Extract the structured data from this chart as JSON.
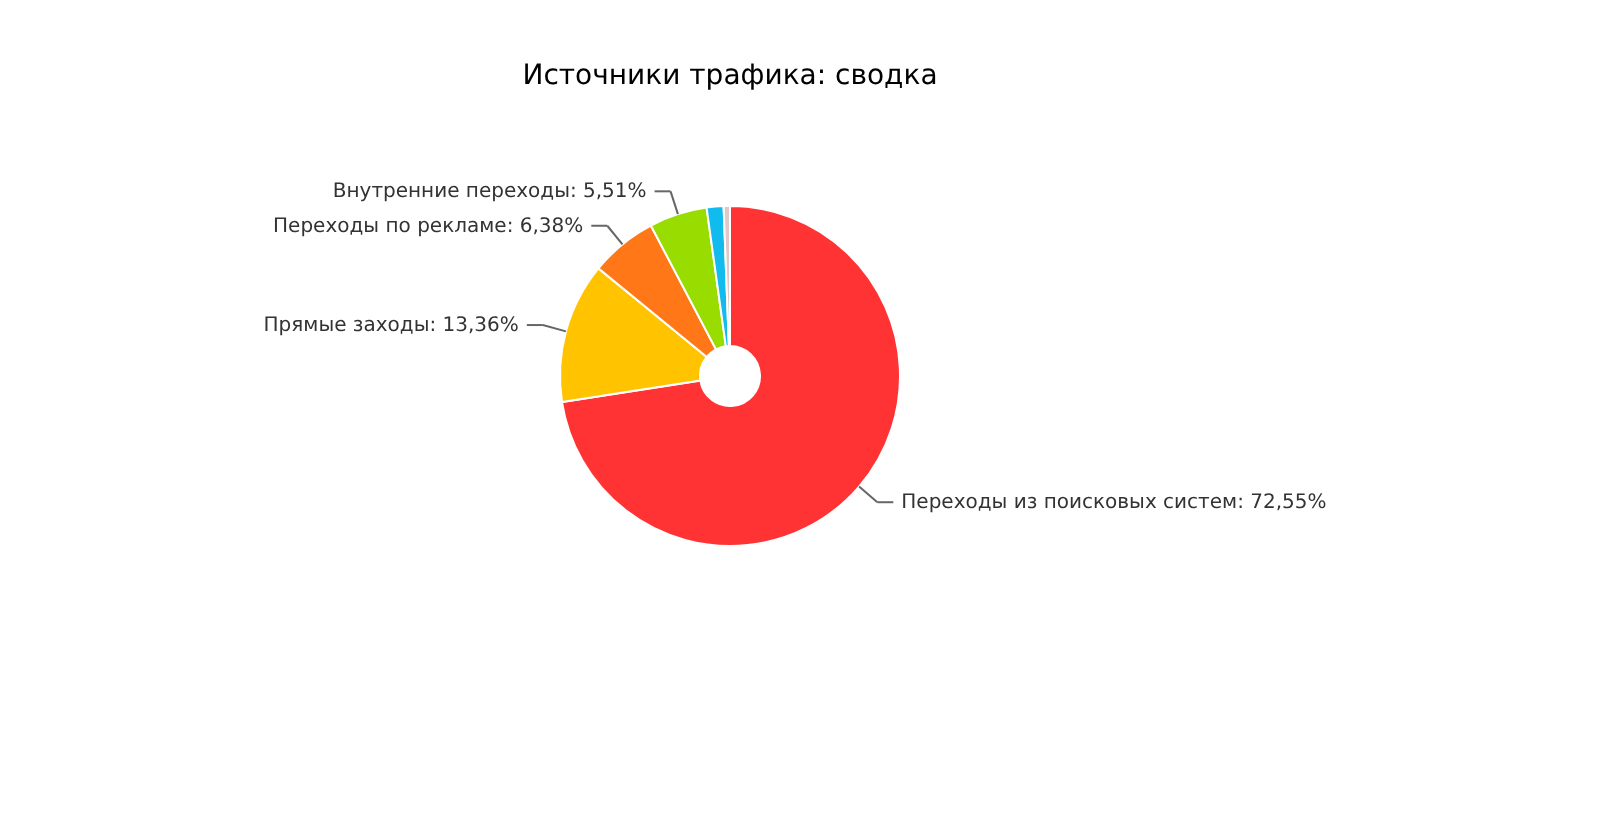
{
  "chart_data": {
    "type": "donut",
    "title": "Источники трафика: сводка",
    "categories": [
      "Переходы из поисковых систем",
      "Прямые заходы",
      "Переходы по рекламе",
      "Внутренние переходы",
      null,
      null
    ],
    "values": [
      72.55,
      13.36,
      6.38,
      5.51,
      1.6,
      0.6
    ],
    "value_labels": [
      "72,55%",
      "13,36%",
      "6,38%",
      "5,51%",
      null,
      null
    ],
    "colors": [
      "#ff3333",
      "#ffc300",
      "#ff7716",
      "#99dd00",
      "#11bbee",
      "#e0c8c8"
    ]
  }
}
